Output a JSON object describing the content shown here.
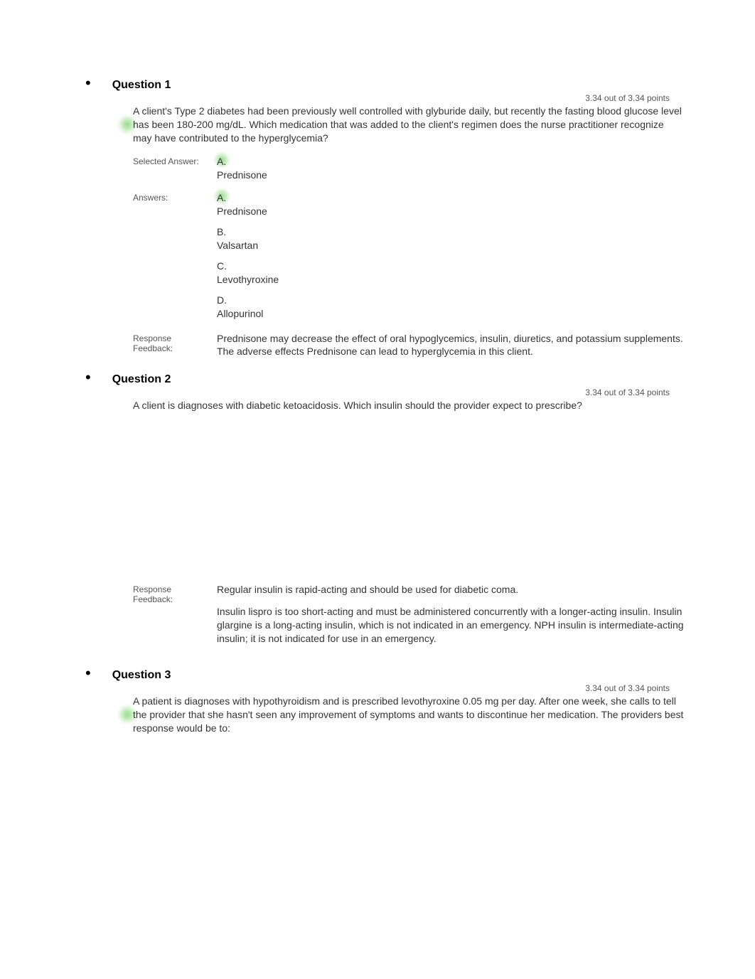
{
  "questions": [
    {
      "number": "Question 1",
      "points": "3.34 out of 3.34 points",
      "stem": "A client's Type 2 diabetes had been previously well controlled with glyburide daily, but recently the fasting blood glucose level has been 180-200 mg/dL. Which medication that was added to the client's regimen does the nurse practitioner recognize may have contributed to the hyperglycemia?",
      "selected_label": "Selected Answer:",
      "answers_label": "Answers:",
      "selected": {
        "letter": "A.",
        "text": "Prednisone"
      },
      "options": [
        {
          "letter": "A.",
          "text": "Prednisone",
          "highlight": true
        },
        {
          "letter": "B.",
          "text": "Valsartan",
          "highlight": false
        },
        {
          "letter": "C.",
          "text": "Levothyroxine",
          "highlight": false
        },
        {
          "letter": "D.",
          "text": "Allopurinol",
          "highlight": false
        }
      ],
      "feedback_label": "Response Feedback:",
      "feedback": "Prednisone may decrease the effect of oral hypoglycemics, insulin, diuretics, and potassium supplements. The adverse effects Prednisone can lead to hyperglycemia in this client."
    },
    {
      "number": "Question 2",
      "points": "3.34 out of 3.34 points",
      "stem": "A client is diagnoses with diabetic ketoacidosis. Which insulin should the provider expect to prescribe?",
      "feedback_label": "Response Feedback:",
      "feedback_1": "Regular insulin is rapid-acting and should be used for diabetic coma.",
      "feedback_2": "Insulin lispro is too short-acting and must be administered concurrently with a longer-acting insulin. Insulin glargine is a long-acting insulin, which is not indicated in an emergency. NPH insulin is intermediate-acting insulin; it is not indicated for use in an emergency."
    },
    {
      "number": "Question 3",
      "points": "3.34 out of 3.34 points",
      "stem": "A patient is diagnoses with hypothyroidism and is prescribed levothyroxine 0.05 mg per day. After one week, she calls to tell the provider that she hasn't seen any improvement of symptoms and wants to discontinue her medication. The providers best response would be to:"
    }
  ],
  "colors": {
    "text": "#333333",
    "label": "#555555",
    "highlight": "#5ac846",
    "background": "#ffffff"
  },
  "typography": {
    "body_font": "Arial",
    "label_font": "Verdana",
    "body_size_pt": 11,
    "title_size_pt": 12,
    "label_size_pt": 9
  }
}
